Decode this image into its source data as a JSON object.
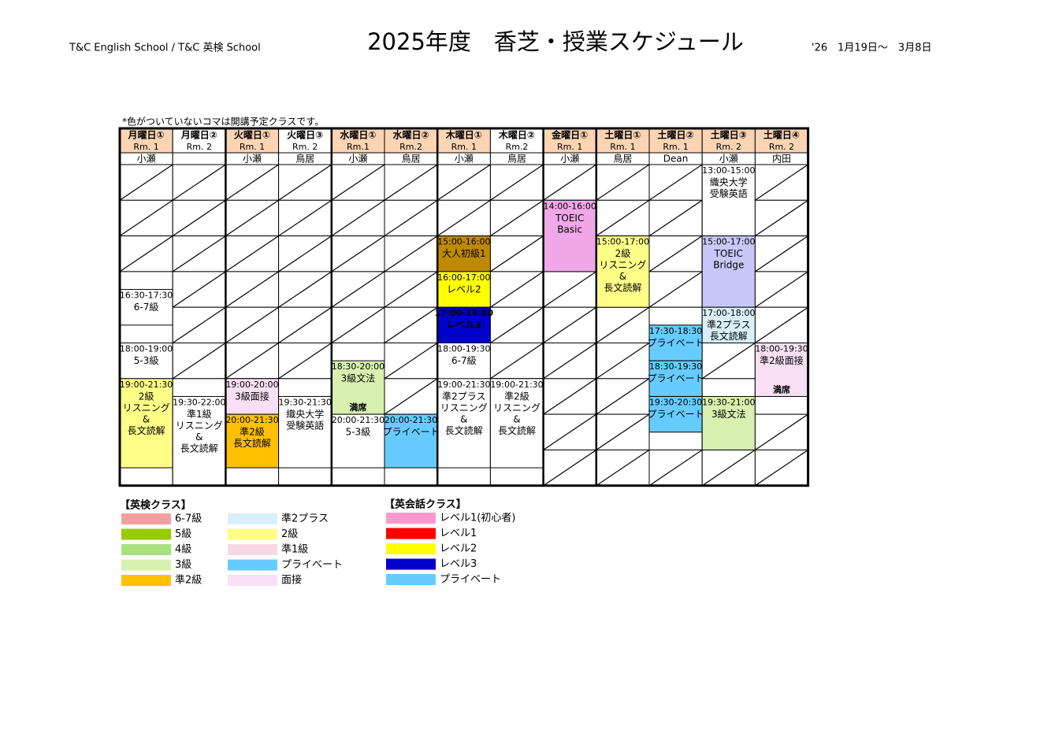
{
  "header": {
    "left": "T&C English School / T&C 英検 School",
    "title": "2025年度　香芝・授業スケジュール",
    "period": "'26　1月19日～　3月8日"
  },
  "note": "*色がついていないコマは開講予定クラスです。",
  "schedule": {
    "columns": [
      {
        "day": "月曜日①",
        "room": "Rm. 1",
        "teacher": "小瀬",
        "header_color": "#fbd4b4",
        "classes": [
          {
            "time": "16:30-17:30",
            "lines": [
              "6-7級"
            ],
            "color": "#ffffff"
          },
          {
            "time": "18:00-19:00",
            "lines": [
              "5-3級"
            ],
            "color": "#ffffff"
          },
          {
            "time": "19:00-21:30",
            "lines": [
              "2級",
              "リスニング",
              "&",
              "長文読解"
            ],
            "color": "#ffff88"
          }
        ]
      },
      {
        "day": "月曜日②",
        "room": "Rm. 2",
        "header_color": "#ffffff",
        "classes": [
          {
            "time": "19:30-22:00",
            "lines": [
              "準1級",
              "リスニング",
              "&",
              "長文読解"
            ],
            "color": "#ffffff"
          }
        ]
      },
      {
        "day": "火曜日①",
        "room": "Rm. 1",
        "teacher": "小瀬",
        "header_color": "#fbd4b4",
        "classes": [
          {
            "time": "19:00-20:00",
            "lines": [
              "3級面接"
            ],
            "color": "#f8e0f4"
          },
          {
            "time": "20:00-21:30",
            "lines": [
              "準2級",
              "長文読解"
            ],
            "color": "#ffc000"
          }
        ]
      },
      {
        "day": "火曜日③",
        "room": "Rm. 2",
        "teacher": "鳥居",
        "header_color": "#ffffff",
        "classes": [
          {
            "time": "19:30-21:30",
            "lines": [
              "織央大学",
              "受験英語"
            ],
            "color": "#ffffff"
          }
        ]
      },
      {
        "day": "水曜日①",
        "room": "Rm.1",
        "teacher": "小瀬",
        "header_color": "#fbd4b4",
        "classes": [
          {
            "time": "18:30-20:00",
            "lines": [
              "3級文法"
            ],
            "status": "満席",
            "color": "#d8f0b0"
          },
          {
            "time": "20:00-21:30",
            "lines": [
              "5-3級"
            ],
            "color": "#ffffff"
          }
        ]
      },
      {
        "day": "水曜日②",
        "room": "Rm.2",
        "teacher": "鳥居",
        "header_color": "#fbd4b4",
        "classes": [
          {
            "time": "20:00-21:30",
            "lines": [
              "プライベート"
            ],
            "color": "#66ccff"
          }
        ]
      },
      {
        "day": "木曜日①",
        "room": "Rm. 1",
        "teacher": "小瀬",
        "header_color": "#fbd4b4",
        "classes": [
          {
            "time": "15:00-16:00",
            "lines": [
              "大人初級1"
            ],
            "color": "#c08a00"
          },
          {
            "time": "16:00-17:00",
            "lines": [
              "レベル2"
            ],
            "color": "#ffff00"
          },
          {
            "time": "17:00-18:00",
            "lines": [
              "レベル3"
            ],
            "color": "#0000cc",
            "text_color": "#ffffff"
          },
          {
            "time": "18:00-19:30",
            "lines": [
              "6-7級"
            ],
            "color": "#ffffff"
          },
          {
            "time": "19:00-21:30",
            "lines": [
              "準2プラス",
              "リスニング",
              "&",
              "長文読解"
            ],
            "color": "#ffffff"
          }
        ]
      },
      {
        "day": "木曜日②",
        "room": "Rm.2",
        "teacher": "鳥居",
        "header_color": "#ffffff",
        "classes": [
          {
            "time": "19:00-21:30",
            "lines": [
              "準2級",
              "リスニング",
              "&",
              "長文読解"
            ],
            "color": "#ffffff"
          }
        ]
      },
      {
        "day": "金曜日①",
        "room": "Rm. 1",
        "teacher": "小瀬",
        "header_color": "#fbd4b4",
        "classes": [
          {
            "time": "14:00-16:00",
            "lines": [
              "TOEIC",
              "Basic"
            ],
            "color": "#f0a8e8"
          }
        ]
      },
      {
        "day": "土曜日①",
        "room": "Rm. 1",
        "teacher": "鳥居",
        "header_color": "#fbd4b4",
        "classes": [
          {
            "time": "15:00-17:00",
            "lines": [
              "2級",
              "リスニング",
              "&",
              "長文読解"
            ],
            "color": "#ffff88"
          }
        ]
      },
      {
        "day": "土曜日②",
        "room": "Rm. 1",
        "teacher": "Dean",
        "header_color": "#fbd4b4",
        "classes": [
          {
            "time": "17:30-18:30",
            "lines": [
              "プライベート"
            ],
            "color": "#66ccff"
          },
          {
            "time": "18:30-19:30",
            "lines": [
              "プライベート"
            ],
            "color": "#66ccff"
          },
          {
            "time": "19:30-20:30",
            "lines": [
              "プライベート"
            ],
            "color": "#66ccff"
          }
        ]
      },
      {
        "day": "土曜日③",
        "room": "Rm. 2",
        "teacher": "小瀬",
        "header_color": "#fbd4b4",
        "classes": [
          {
            "time": "13:00-15:00",
            "lines": [
              "織央大学",
              "受験英語"
            ],
            "color": "#ffffff"
          },
          {
            "time": "15:00-17:00",
            "lines": [
              "TOEIC",
              "Bridge"
            ],
            "color": "#c8c8f8"
          },
          {
            "time": "17:00-18:00",
            "lines": [
              "準2プラス",
              "長文読解"
            ],
            "color": "#d8f0f8"
          },
          {
            "time": "19:30-21:00",
            "lines": [
              "3級文法"
            ],
            "color": "#d8f0b0"
          }
        ]
      },
      {
        "day": "土曜日④",
        "room": "Rm. 2",
        "teacher": "内田",
        "header_color": "#fbd4b4",
        "classes": [
          {
            "time": "18:00-19:30",
            "lines": [
              "準2級面接"
            ],
            "status": "満席",
            "color": "#f8e0f4"
          }
        ]
      }
    ]
  },
  "legend": {
    "eiken": {
      "title": "【英検クラス】",
      "items": [
        {
          "label": "6-7級",
          "color": "#f4a0a0"
        },
        {
          "label": "5級",
          "color": "#99cc00"
        },
        {
          "label": "4級",
          "color": "#a8e080"
        },
        {
          "label": "3級",
          "color": "#d8f0b0"
        },
        {
          "label": "準2級",
          "color": "#ffc000"
        },
        {
          "label": "準2プラス",
          "color": "#d8f0f8"
        },
        {
          "label": "2級",
          "color": "#ffff88"
        },
        {
          "label": "準1級",
          "color": "#f8d8e4"
        },
        {
          "label": "プライベート",
          "color": "#66ccff"
        },
        {
          "label": "面接",
          "color": "#f8e0f8"
        }
      ]
    },
    "kaiwa": {
      "title": "【英会話クラス】",
      "items": [
        {
          "label": "レベル1(初心者)",
          "color": "#ff99cc"
        },
        {
          "label": "レベル1",
          "color": "#ff0000"
        },
        {
          "label": "レベル2",
          "color": "#ffff00"
        },
        {
          "label": "レベル3",
          "color": "#0000cc"
        },
        {
          "label": "プライベート",
          "color": "#66ccff"
        }
      ]
    }
  }
}
